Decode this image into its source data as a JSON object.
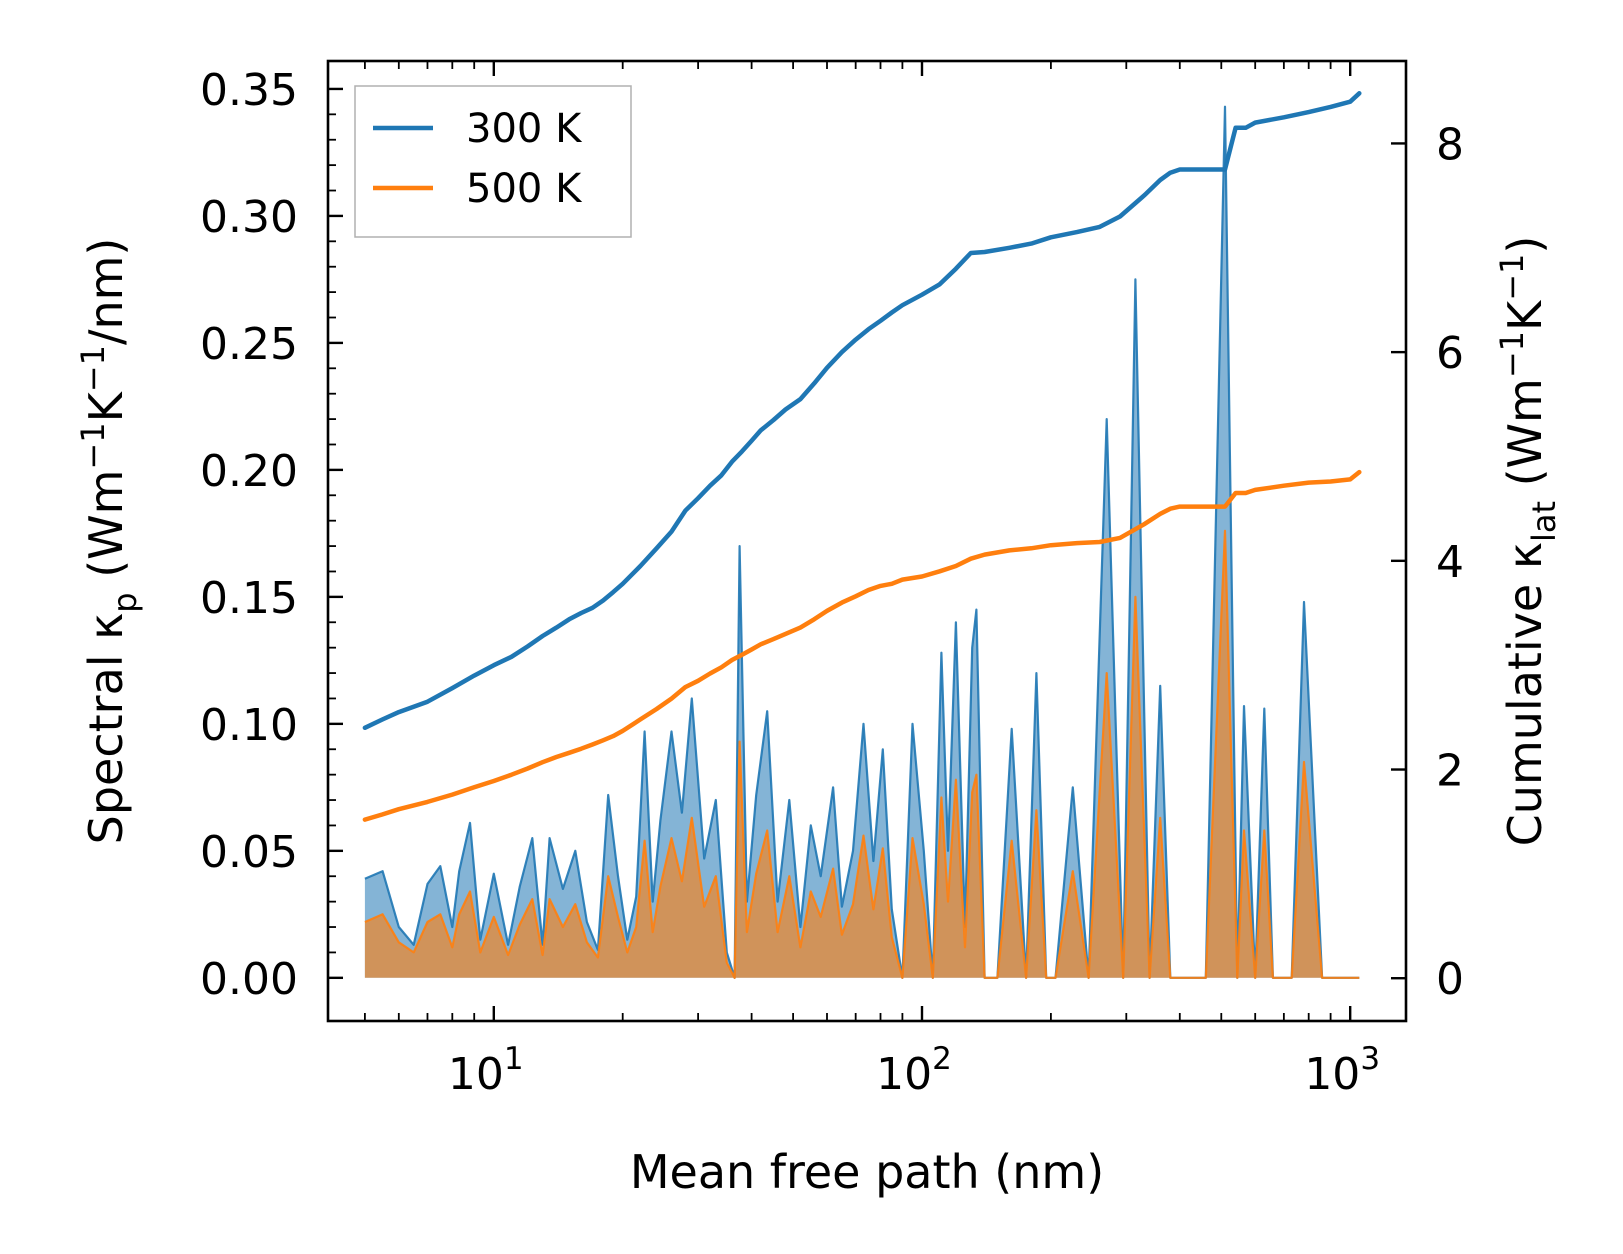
{
  "chart_data": {
    "type": "line",
    "xscale": "log",
    "xlim": [
      4.1,
      1350
    ],
    "ylim_left": [
      -0.017,
      0.361
    ],
    "ylim_right": [
      -0.41,
      8.79
    ],
    "xlabel": "Mean free path (nm)",
    "ylabel_left": {
      "pre": "Spectral κ",
      "sub": "p",
      "post1": " (Wm",
      "sup1": "−1",
      "post2": "K",
      "sup2": "−1",
      "post3": "/nm)"
    },
    "ylabel_right": {
      "pre": "Cumulative κ",
      "sub": "lat",
      "post1": " (Wm",
      "sup1": "−1",
      "post2": "K",
      "sup2": "−1",
      "post3": ")"
    },
    "xticks": [
      {
        "value": 10,
        "base": "10",
        "exp": "1"
      },
      {
        "value": 100,
        "base": "10",
        "exp": "2"
      },
      {
        "value": 1000,
        "base": "10",
        "exp": "3"
      }
    ],
    "yticks_left": [
      {
        "value": 0.0,
        "label": "0.00"
      },
      {
        "value": 0.05,
        "label": "0.05"
      },
      {
        "value": 0.1,
        "label": "0.10"
      },
      {
        "value": 0.15,
        "label": "0.15"
      },
      {
        "value": 0.2,
        "label": "0.20"
      },
      {
        "value": 0.25,
        "label": "0.25"
      },
      {
        "value": 0.3,
        "label": "0.30"
      },
      {
        "value": 0.35,
        "label": "0.35"
      }
    ],
    "yticks_right": [
      {
        "value": 0,
        "label": "0"
      },
      {
        "value": 2,
        "label": "2"
      },
      {
        "value": 4,
        "label": "4"
      },
      {
        "value": 6,
        "label": "6"
      },
      {
        "value": 8,
        "label": "8"
      }
    ],
    "legend": {
      "position": "upper-left",
      "entries": [
        {
          "label": "300 K",
          "color": "#1f77b4"
        },
        {
          "label": "500 K",
          "color": "#ff7f0e"
        }
      ]
    },
    "series": [
      {
        "name": "300 K spectral",
        "axis": "left",
        "kind": "spectral-fill",
        "color": "#1f77b4",
        "x": [
          5.0,
          5.5,
          6.0,
          6.5,
          7.0,
          7.5,
          8.0,
          8.3,
          8.8,
          9.3,
          10.0,
          10.8,
          11.5,
          12.3,
          13.0,
          13.5,
          14.5,
          15.5,
          16.5,
          17.5,
          18.5,
          19.5,
          20.5,
          21.5,
          22.5,
          23.5,
          24.5,
          26.0,
          27.5,
          29.0,
          31.0,
          33.0,
          35.0,
          36.5,
          37.5,
          39.0,
          41.0,
          43.5,
          46.0,
          49.0,
          52.0,
          55.0,
          58.0,
          62.0,
          65.0,
          69.0,
          73.0,
          77.0,
          81.0,
          85.0,
          90.0,
          95.0,
          101.0,
          106.0,
          111.0,
          115.0,
          120.0,
          126.0,
          131.0,
          134.0,
          140.0,
          150.0,
          162.0,
          175.0,
          185.0,
          195.0,
          205.0,
          225.0,
          245.0,
          270.0,
          295.0,
          315.0,
          340.0,
          360.0,
          380.0,
          395.0,
          420.0,
          460.0,
          510.0,
          545.0,
          565.0,
          600.0,
          630.0,
          660.0,
          690.0,
          730.0,
          780.0,
          860.0,
          950.0,
          1010.0,
          1050.0
        ],
        "y": [
          0.039,
          0.042,
          0.02,
          0.013,
          0.037,
          0.044,
          0.02,
          0.042,
          0.061,
          0.015,
          0.041,
          0.013,
          0.036,
          0.055,
          0.013,
          0.055,
          0.035,
          0.05,
          0.022,
          0.011,
          0.072,
          0.04,
          0.015,
          0.032,
          0.097,
          0.03,
          0.062,
          0.097,
          0.065,
          0.11,
          0.047,
          0.07,
          0.01,
          0.0,
          0.17,
          0.03,
          0.072,
          0.105,
          0.03,
          0.07,
          0.02,
          0.06,
          0.04,
          0.075,
          0.028,
          0.05,
          0.1,
          0.046,
          0.09,
          0.027,
          0.0,
          0.1,
          0.05,
          0.0,
          0.128,
          0.05,
          0.14,
          0.02,
          0.13,
          0.145,
          0.0,
          0.0,
          0.098,
          0.0,
          0.12,
          0.0,
          0.0,
          0.075,
          0.0,
          0.22,
          0.0,
          0.275,
          0.0,
          0.115,
          0.0,
          0.0,
          0.0,
          0.0,
          0.343,
          0.0,
          0.107,
          0.0,
          0.106,
          0.0,
          0.0,
          0.0,
          0.148,
          0.0,
          0.0,
          0.0,
          0.0
        ]
      },
      {
        "name": "500 K spectral",
        "axis": "left",
        "kind": "spectral-fill",
        "color": "#ff7f0e",
        "x": [
          5.0,
          5.5,
          6.0,
          6.5,
          7.0,
          7.5,
          8.0,
          8.3,
          8.8,
          9.3,
          10.0,
          10.8,
          11.5,
          12.3,
          13.0,
          13.5,
          14.5,
          15.5,
          16.5,
          17.5,
          18.5,
          19.5,
          20.5,
          21.5,
          22.5,
          23.5,
          24.5,
          26.0,
          27.5,
          29.0,
          31.0,
          33.0,
          35.0,
          36.5,
          37.5,
          39.0,
          41.0,
          43.5,
          46.0,
          49.0,
          52.0,
          55.0,
          58.0,
          62.0,
          65.0,
          69.0,
          73.0,
          77.0,
          81.0,
          85.0,
          90.0,
          95.0,
          101.0,
          106.0,
          111.0,
          115.0,
          120.0,
          126.0,
          131.0,
          134.0,
          140.0,
          150.0,
          162.0,
          175.0,
          185.0,
          195.0,
          205.0,
          225.0,
          245.0,
          270.0,
          295.0,
          315.0,
          340.0,
          360.0,
          380.0,
          395.0,
          420.0,
          460.0,
          510.0,
          545.0,
          565.0,
          600.0,
          630.0,
          660.0,
          690.0,
          730.0,
          780.0,
          860.0,
          950.0,
          1010.0,
          1050.0
        ],
        "y": [
          0.022,
          0.025,
          0.014,
          0.01,
          0.022,
          0.025,
          0.012,
          0.025,
          0.034,
          0.01,
          0.024,
          0.009,
          0.021,
          0.031,
          0.009,
          0.031,
          0.02,
          0.029,
          0.014,
          0.008,
          0.04,
          0.024,
          0.01,
          0.02,
          0.054,
          0.018,
          0.036,
          0.055,
          0.038,
          0.063,
          0.028,
          0.04,
          0.006,
          0.0,
          0.093,
          0.018,
          0.041,
          0.058,
          0.018,
          0.04,
          0.012,
          0.034,
          0.024,
          0.043,
          0.017,
          0.029,
          0.056,
          0.027,
          0.051,
          0.016,
          0.0,
          0.055,
          0.029,
          0.0,
          0.071,
          0.03,
          0.078,
          0.012,
          0.073,
          0.08,
          0.0,
          0.0,
          0.054,
          0.0,
          0.066,
          0.0,
          0.0,
          0.042,
          0.0,
          0.12,
          0.0,
          0.15,
          0.0,
          0.063,
          0.0,
          0.0,
          0.0,
          0.0,
          0.176,
          0.0,
          0.058,
          0.0,
          0.058,
          0.0,
          0.0,
          0.0,
          0.085,
          0.0,
          0.0,
          0.0,
          0.0
        ]
      },
      {
        "name": "300 K",
        "axis": "right",
        "kind": "cumulative-line",
        "color": "#1f77b4",
        "x": [
          5.0,
          5.5,
          6.0,
          7.0,
          8.0,
          9.0,
          10.0,
          11.0,
          12.0,
          13.0,
          14.0,
          15.0,
          16.0,
          17.0,
          18.0,
          19.0,
          20.0,
          22.0,
          24.0,
          26.0,
          28.0,
          30.0,
          32.0,
          34.0,
          36.0,
          38.0,
          40.0,
          42.0,
          45.0,
          48.0,
          52.0,
          56.0,
          60.0,
          65.0,
          70.0,
          75.0,
          80.0,
          85.0,
          90.0,
          100.0,
          110.0,
          120.0,
          130.0,
          140.0,
          160.0,
          180.0,
          200.0,
          230.0,
          260.0,
          290.0,
          330.0,
          360.0,
          380.0,
          400.0,
          450.0,
          510.0,
          540.0,
          570.0,
          600.0,
          700.0,
          800.0,
          900.0,
          1000.0,
          1050.0
        ],
        "y": [
          2.4,
          2.48,
          2.55,
          2.65,
          2.78,
          2.9,
          3.0,
          3.08,
          3.18,
          3.28,
          3.36,
          3.44,
          3.5,
          3.55,
          3.62,
          3.7,
          3.78,
          3.95,
          4.12,
          4.28,
          4.48,
          4.6,
          4.72,
          4.82,
          4.95,
          5.05,
          5.15,
          5.25,
          5.35,
          5.45,
          5.55,
          5.7,
          5.85,
          6.0,
          6.12,
          6.22,
          6.3,
          6.38,
          6.45,
          6.55,
          6.65,
          6.8,
          6.95,
          6.96,
          7.0,
          7.04,
          7.1,
          7.15,
          7.2,
          7.3,
          7.5,
          7.65,
          7.72,
          7.75,
          7.75,
          7.75,
          8.15,
          8.15,
          8.2,
          8.25,
          8.3,
          8.35,
          8.4,
          8.48
        ]
      },
      {
        "name": "500 K",
        "axis": "right",
        "kind": "cumulative-line",
        "color": "#ff7f0e",
        "x": [
          5.0,
          5.5,
          6.0,
          7.0,
          8.0,
          9.0,
          10.0,
          11.0,
          12.0,
          13.0,
          14.0,
          15.0,
          16.0,
          17.0,
          18.0,
          19.0,
          20.0,
          22.0,
          24.0,
          26.0,
          28.0,
          30.0,
          32.0,
          34.0,
          36.0,
          38.0,
          40.0,
          42.0,
          45.0,
          48.0,
          52.0,
          56.0,
          60.0,
          65.0,
          70.0,
          75.0,
          80.0,
          85.0,
          90.0,
          100.0,
          110.0,
          120.0,
          130.0,
          140.0,
          160.0,
          180.0,
          200.0,
          230.0,
          260.0,
          290.0,
          330.0,
          360.0,
          380.0,
          400.0,
          450.0,
          510.0,
          540.0,
          570.0,
          600.0,
          700.0,
          800.0,
          900.0,
          1000.0,
          1050.0
        ],
        "y": [
          1.52,
          1.57,
          1.62,
          1.69,
          1.76,
          1.83,
          1.89,
          1.95,
          2.01,
          2.07,
          2.12,
          2.16,
          2.2,
          2.24,
          2.28,
          2.32,
          2.37,
          2.48,
          2.58,
          2.68,
          2.79,
          2.85,
          2.92,
          2.98,
          3.05,
          3.1,
          3.15,
          3.2,
          3.25,
          3.3,
          3.36,
          3.44,
          3.52,
          3.6,
          3.66,
          3.72,
          3.76,
          3.78,
          3.82,
          3.85,
          3.9,
          3.95,
          4.02,
          4.06,
          4.1,
          4.12,
          4.15,
          4.17,
          4.18,
          4.22,
          4.35,
          4.45,
          4.5,
          4.52,
          4.52,
          4.52,
          4.65,
          4.65,
          4.68,
          4.72,
          4.75,
          4.76,
          4.78,
          4.85
        ]
      }
    ]
  }
}
